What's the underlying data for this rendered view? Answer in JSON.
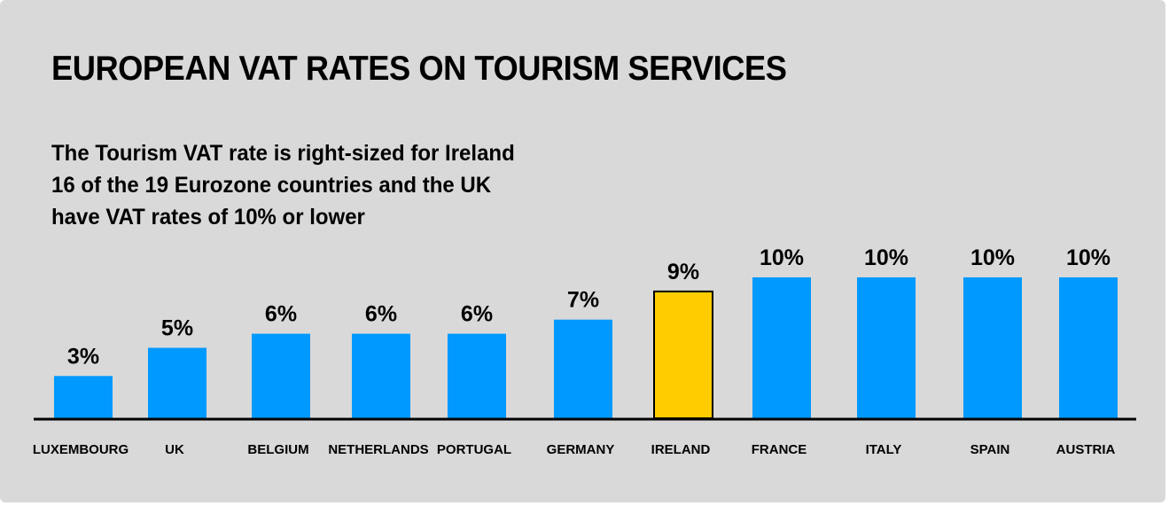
{
  "title": "EUROPEAN VAT RATES ON TOURISM SERVICES",
  "subtitle_lines": [
    "The Tourism VAT rate is right-sized for Ireland",
    "16 of the 19 Eurozone countries and the UK",
    "have VAT rates of 10% or lower"
  ],
  "colors": {
    "background": "#d9d9d9",
    "bar": "#0099ff",
    "highlight": "#ffcc00",
    "axis": "#000000"
  },
  "chart_data": {
    "type": "bar",
    "title": "EUROPEAN VAT RATES ON TOURISM SERVICES",
    "categories": [
      "LUXEMBOURG",
      "UK",
      "BELGIUM",
      "NETHERLANDS",
      "PORTUGAL",
      "GERMANY",
      "IRELAND",
      "FRANCE",
      "ITALY",
      "SPAIN",
      "AUSTRIA"
    ],
    "values": [
      3,
      5,
      6,
      6,
      6,
      7,
      9,
      10,
      10,
      10,
      10
    ],
    "value_labels": [
      "3%",
      "5%",
      "6%",
      "6%",
      "6%",
      "7%",
      "9%",
      "10%",
      "10%",
      "10%",
      "10%"
    ],
    "highlight_category": "IRELAND",
    "ylim": [
      0,
      10
    ],
    "xlabel": "",
    "ylabel": "",
    "grid": false,
    "legend": "none"
  }
}
